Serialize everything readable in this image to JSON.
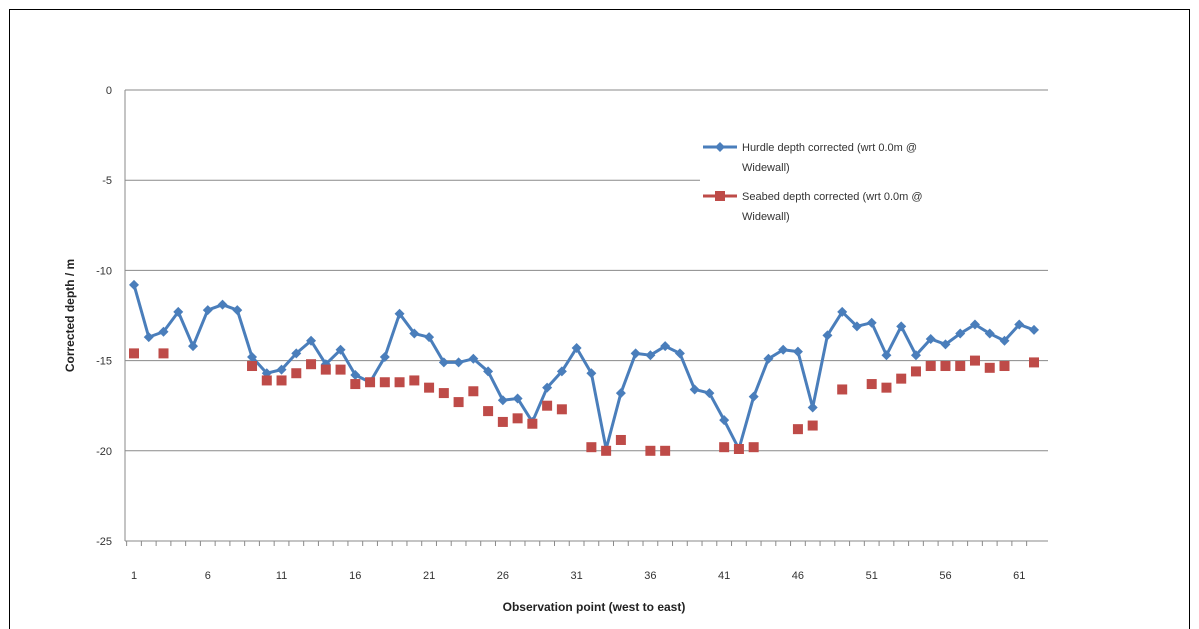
{
  "chart_data": {
    "type": "line",
    "title": "",
    "xlabel": "Observation point  (west to east)",
    "ylabel": "Corrected depth / m",
    "ylim": [
      -25,
      0
    ],
    "yticks": [
      0,
      -5,
      -10,
      -15,
      -20,
      -25
    ],
    "xlim": [
      1,
      62
    ],
    "xticks": [
      1,
      6,
      11,
      16,
      21,
      26,
      31,
      36,
      41,
      46,
      51,
      56,
      61
    ],
    "grid": "horizontal",
    "legend_position": "top-right",
    "series": [
      {
        "name": "Hurdle depth corrected (wrt 0.0m @ Widewall)",
        "marker": "diamond",
        "color": "#4a7ebb",
        "x": [
          1,
          2,
          3,
          4,
          5,
          6,
          7,
          8,
          9,
          10,
          11,
          12,
          13,
          14,
          15,
          16,
          17,
          18,
          19,
          20,
          21,
          22,
          23,
          24,
          25,
          26,
          27,
          28,
          29,
          30,
          31,
          32,
          33,
          34,
          35,
          36,
          37,
          38,
          39,
          40,
          41,
          42,
          43,
          44,
          45,
          46,
          47,
          48,
          49,
          50,
          51,
          52,
          53,
          54,
          55,
          56,
          57,
          58,
          59,
          60,
          61,
          62
        ],
        "y": [
          -10.8,
          -13.7,
          -13.4,
          -12.3,
          -14.2,
          -12.2,
          -11.9,
          -12.2,
          -14.8,
          -15.7,
          -15.5,
          -14.6,
          -13.9,
          -15.2,
          -14.4,
          -15.8,
          -16.2,
          -14.8,
          -12.4,
          -13.5,
          -13.7,
          -15.1,
          -15.1,
          -14.9,
          -15.6,
          -17.2,
          -17.1,
          -18.4,
          -16.5,
          -15.6,
          -14.3,
          -15.7,
          -19.9,
          -16.8,
          -14.6,
          -14.7,
          -14.2,
          -14.6,
          -16.6,
          -16.8,
          -18.3,
          -19.9,
          -17.0,
          -14.9,
          -14.4,
          -14.5,
          -17.6,
          -13.6,
          -12.3,
          -13.1,
          -12.9,
          -14.7,
          -13.1,
          -14.7,
          -13.8,
          -14.1,
          -13.5,
          -13.0,
          -13.5,
          -13.9,
          -13.0,
          -13.3
        ]
      },
      {
        "name": "Seabed depth corrected (wrt 0.0m @ Widewall)",
        "marker": "square",
        "color": "#be4b48",
        "x": [
          1,
          3,
          9,
          10,
          11,
          12,
          13,
          14,
          15,
          16,
          17,
          18,
          19,
          20,
          21,
          22,
          23,
          24,
          25,
          26,
          27,
          28,
          29,
          30,
          32,
          33,
          34,
          36,
          37,
          41,
          42,
          43,
          46,
          47,
          49,
          51,
          52,
          53,
          54,
          55,
          56,
          57,
          58,
          59,
          60,
          62
        ],
        "y": [
          -14.6,
          -14.6,
          -15.3,
          -16.1,
          -16.1,
          -15.7,
          -15.2,
          -15.5,
          -15.5,
          -16.3,
          -16.2,
          -16.2,
          -16.2,
          -16.1,
          -16.5,
          -16.8,
          -17.3,
          -16.7,
          -17.8,
          -18.4,
          -18.2,
          -18.5,
          -17.5,
          -17.7,
          -19.8,
          -20.0,
          -19.4,
          -20.0,
          -20.0,
          -19.8,
          -19.9,
          -19.8,
          -18.8,
          -18.6,
          -16.6,
          -16.3,
          -16.5,
          -16.0,
          -15.6,
          -15.3,
          -15.3,
          -15.3,
          -15.0,
          -15.4,
          -15.3,
          -15.1
        ]
      }
    ]
  }
}
